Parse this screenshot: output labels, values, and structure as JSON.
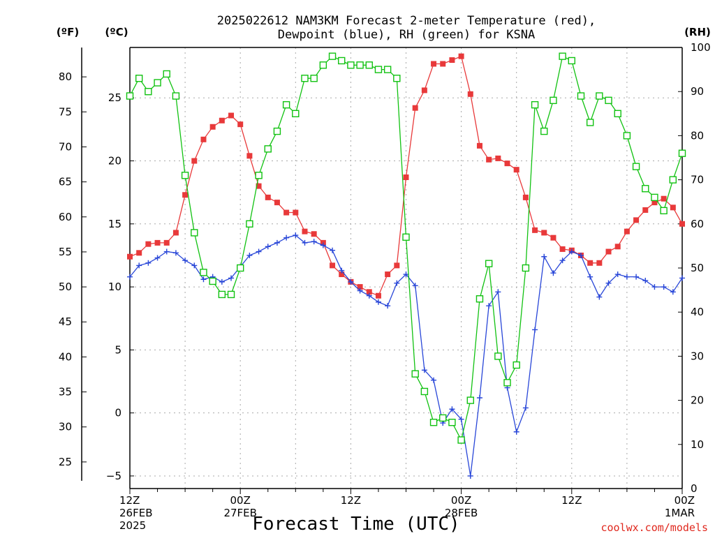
{
  "title_line1": "2025022612 NAM3KM Forecast 2-meter Temperature (red),",
  "title_line2": "Dewpoint (blue), RH (green) for KSNA",
  "credit": "coolwx.com/models",
  "chart_data": {
    "type": "line",
    "xlabel": "Forecast Time (UTC)",
    "x_hours": [
      0,
      1,
      2,
      3,
      4,
      5,
      6,
      7,
      8,
      9,
      10,
      11,
      12,
      13,
      14,
      15,
      16,
      17,
      18,
      19,
      20,
      21,
      22,
      23,
      24,
      25,
      26,
      27,
      28,
      29,
      30,
      31,
      32,
      33,
      34,
      35,
      36,
      37,
      38,
      39,
      40,
      41,
      42,
      43,
      44,
      45,
      46,
      47,
      48,
      49,
      50,
      51,
      52,
      53,
      54,
      55,
      56,
      57,
      58,
      59,
      60
    ],
    "x_ticks": [
      {
        "hour": 0,
        "lines": [
          "12Z",
          "26FEB",
          "2025"
        ]
      },
      {
        "hour": 12,
        "lines": [
          "00Z",
          "27FEB"
        ]
      },
      {
        "hour": 24,
        "lines": [
          "12Z"
        ]
      },
      {
        "hour": 36,
        "lines": [
          "00Z",
          "28FEB"
        ]
      },
      {
        "hour": 48,
        "lines": [
          "12Z"
        ]
      },
      {
        "hour": 60,
        "lines": [
          "00Z",
          "1MAR"
        ]
      }
    ],
    "y_left_celsius": {
      "unit_label": "(ºC)",
      "range": [
        -6,
        29
      ],
      "ticks": [
        -5,
        0,
        5,
        10,
        15,
        20,
        25
      ]
    },
    "y_left_fahrenheit": {
      "unit_label": "(ºF)",
      "ticks": [
        25,
        30,
        35,
        40,
        45,
        50,
        55,
        60,
        65,
        70,
        75,
        80
      ]
    },
    "y_right_rh": {
      "unit_label": "(RH)",
      "range": [
        0,
        100
      ],
      "ticks": [
        0,
        10,
        20,
        30,
        40,
        50,
        60,
        70,
        80,
        90,
        100
      ]
    },
    "grid": true,
    "series": [
      {
        "name": "Temperature",
        "axis": "celsius",
        "color": "#e8393a",
        "marker": "filled-square",
        "values": [
          12.4,
          12.7,
          13.4,
          13.5,
          13.5,
          14.3,
          17.3,
          20.0,
          21.7,
          22.7,
          23.2,
          23.6,
          22.9,
          20.4,
          18.0,
          17.1,
          16.7,
          15.9,
          15.9,
          14.4,
          14.2,
          13.5,
          11.7,
          11.0,
          10.4,
          10.0,
          9.6,
          9.3,
          11.0,
          11.7,
          18.7,
          24.2,
          25.6,
          27.7,
          27.7,
          28.0,
          28.3,
          25.3,
          21.2,
          20.1,
          20.2,
          19.8,
          19.3,
          17.1,
          14.5,
          14.3,
          13.9,
          13.0,
          12.9,
          12.5,
          11.9,
          11.9,
          12.8,
          13.2,
          14.4,
          15.3,
          16.1,
          16.7,
          17.0,
          16.3,
          15.0
        ]
      },
      {
        "name": "Dewpoint",
        "axis": "celsius",
        "color": "#2846d8",
        "marker": "plus",
        "values": [
          10.8,
          11.7,
          11.9,
          12.3,
          12.8,
          12.7,
          12.1,
          11.7,
          10.6,
          10.8,
          10.4,
          10.7,
          11.6,
          12.5,
          12.8,
          13.2,
          13.5,
          13.9,
          14.1,
          13.5,
          13.6,
          13.3,
          12.9,
          11.3,
          10.4,
          9.7,
          9.3,
          8.8,
          8.5,
          10.3,
          11.0,
          10.1,
          3.4,
          2.6,
          -0.8,
          0.3,
          -0.5,
          -5.0,
          1.2,
          8.5,
          9.6,
          2.0,
          -1.5,
          0.4,
          6.6,
          12.4,
          11.1,
          12.1,
          12.8,
          12.5,
          10.8,
          9.2,
          10.3,
          11.0,
          10.8,
          10.8,
          10.5,
          10.0,
          10.0,
          9.6,
          10.7
        ]
      },
      {
        "name": "RH",
        "axis": "rh",
        "color": "#11c211",
        "marker": "open-square",
        "values": [
          89,
          93,
          90,
          92,
          94,
          89,
          71,
          58,
          49,
          47,
          44,
          44,
          50,
          60,
          71,
          77,
          81,
          87,
          85,
          93,
          93,
          96,
          98,
          97,
          96,
          96,
          96,
          95,
          95,
          93,
          57,
          26,
          22,
          15,
          16,
          15,
          11,
          20,
          43,
          51,
          30,
          24,
          28,
          50,
          87,
          81,
          88,
          98,
          97,
          89,
          83,
          89,
          88,
          85,
          80,
          73,
          68,
          66,
          63,
          70,
          76
        ]
      }
    ]
  }
}
